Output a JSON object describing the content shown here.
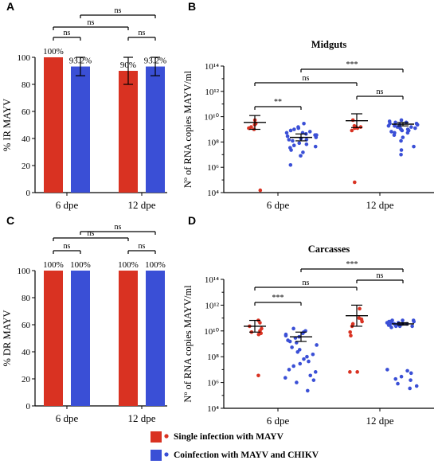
{
  "colors": {
    "single": "#d93222",
    "coinfection": "#3a4fd6"
  },
  "panels": {
    "A": {
      "letter": "A",
      "chart_data": {
        "type": "bar",
        "ylabel": "% IR MAYV",
        "ylim": [
          0,
          100
        ],
        "yticks": [
          "0",
          "20",
          "40",
          "60",
          "80",
          "100"
        ],
        "groups": [
          "6 dpe",
          "12 dpe"
        ],
        "series": [
          {
            "values": [
              100,
              90
            ],
            "errors": [
              0,
              10
            ]
          },
          {
            "values": [
              93.2,
              93.2
            ],
            "errors": [
              6.8,
              6.8
            ]
          }
        ],
        "bar_labels": [
          [
            "100%",
            "90%"
          ],
          [
            "93.2%",
            "93.2%"
          ]
        ],
        "annotations": [
          "ns",
          "ns",
          "ns",
          "ns"
        ]
      }
    },
    "B": {
      "letter": "B",
      "chart_data": {
        "type": "scatter",
        "title": "Midguts",
        "ylabel": "Nº of RNA copies MAYV/ml",
        "yscale": "log",
        "ylim": [
          4,
          15
        ],
        "yticks": [
          "10⁴",
          "10⁶",
          "10⁸",
          "10¹⁰",
          "10¹²",
          "10¹⁴"
        ],
        "groups": [
          "6 dpe",
          "12 dpe"
        ],
        "series": [
          {
            "points_log10": [
              [
                9.9,
                10.0,
                9.6,
                9.7,
                9.5,
                10.3,
                9.6,
                4.2
              ],
              [
                9.7,
                10.3,
                9.6,
                9.8,
                9.4,
                9.7,
                9.6,
                4.9
              ]
            ],
            "mean_log10": [
              10.1,
              10.25
            ],
            "sem_log10": [
              0.6,
              0.6
            ]
          },
          {
            "points_log10": [
              [
                10.0,
                9.7,
                9.5,
                9.3,
                9.1,
                8.9,
                8.7,
                8.5,
                8.2,
                7.9,
                7.5,
                7.2,
                9.4,
                9.2,
                9.0,
                8.8,
                8.6,
                8.3,
                8.0,
                7.7,
                9.6,
                9.2,
                8.6,
                8.1,
                6.4,
                9.0
              ],
              [
                10.2,
                10.0,
                9.8,
                9.6,
                9.4,
                9.2,
                10.1,
                9.9,
                9.7,
                9.5,
                9.3,
                9.0,
                10.3,
                10.0,
                9.8,
                9.6,
                9.4,
                9.2,
                9.9,
                9.7,
                9.5,
                8.8,
                8.5,
                8.0,
                7.7,
                7.3,
                10.1,
                9.8
              ]
            ],
            "mean_log10": [
              8.8,
              9.95
            ],
            "sem_log10": [
              0.3,
              0.15
            ]
          }
        ],
        "annotations": [
          "**",
          "ns",
          "ns",
          "***"
        ]
      }
    },
    "C": {
      "letter": "C",
      "chart_data": {
        "type": "bar",
        "ylabel": "% DR MAYV",
        "ylim": [
          0,
          100
        ],
        "yticks": [
          "0",
          "20",
          "40",
          "60",
          "80",
          "100"
        ],
        "groups": [
          "6 dpe",
          "12 dpe"
        ],
        "series": [
          {
            "values": [
              100,
              100
            ],
            "errors": [
              0,
              0
            ]
          },
          {
            "values": [
              100,
              100
            ],
            "errors": [
              0,
              0
            ]
          }
        ],
        "bar_labels": [
          [
            "100%",
            "100%"
          ],
          [
            "100%",
            "100%"
          ]
        ],
        "annotations": [
          "ns",
          "ns",
          "ns",
          "ns"
        ]
      }
    },
    "D": {
      "letter": "D",
      "chart_data": {
        "type": "scatter",
        "title": "Carcasses",
        "ylabel": "Nº of RNA copies MAYV/ml",
        "yscale": "log",
        "ylim": [
          4,
          15
        ],
        "yticks": [
          "10⁴",
          "10⁶",
          "10⁸",
          "10¹⁰",
          "10¹²",
          "10¹⁴"
        ],
        "groups": [
          "6 dpe",
          "12 dpe"
        ],
        "series": [
          {
            "points_log10": [
              [
                11.5,
                11.0,
                10.5,
                10.3,
                11.3,
                10.8,
                10.4,
                10.6,
                6.8
              ],
              [
                12.5,
                11.7,
                11.4,
                11.2,
                11.6,
                11.0,
                10.5,
                10.2,
                7.1,
                7.1
              ]
            ],
            "mean_log10": [
              11.0,
              11.9
            ],
            "sem_log10": [
              0.5,
              0.9
            ]
          },
          {
            "points_log10": [
              [
                10.6,
                10.4,
                10.2,
                10.0,
                9.6,
                9.2,
                8.8,
                8.4,
                8.0,
                7.6,
                7.1,
                6.6,
                6.2,
                10.5,
                10.1,
                9.8,
                9.4,
                9.0,
                8.6,
                8.2,
                7.8,
                7.3,
                6.8,
                6.4,
                10.8,
                10.3,
                9.7,
                5.5
              ],
              [
                11.5,
                11.4,
                11.3,
                11.2,
                11.1,
                11.0,
                11.5,
                11.4,
                11.3,
                11.2,
                11.1,
                11.0,
                10.9,
                11.5,
                11.3,
                11.2,
                11.1,
                11.0,
                11.4,
                11.2,
                11.1,
                7.3,
                7.0,
                6.7,
                6.4,
                6.1,
                5.9,
                5.7,
                7.2,
                6.5
              ]
            ],
            "mean_log10": [
              10.1,
              11.2
            ],
            "sem_log10": [
              0.4,
              0.1
            ]
          }
        ],
        "annotations": [
          "***",
          "ns",
          "ns",
          "***"
        ]
      }
    }
  },
  "legend": [
    {
      "label": "Single infection with MAYV"
    },
    {
      "label": "Coinfection with MAYV and CHIKV"
    }
  ]
}
